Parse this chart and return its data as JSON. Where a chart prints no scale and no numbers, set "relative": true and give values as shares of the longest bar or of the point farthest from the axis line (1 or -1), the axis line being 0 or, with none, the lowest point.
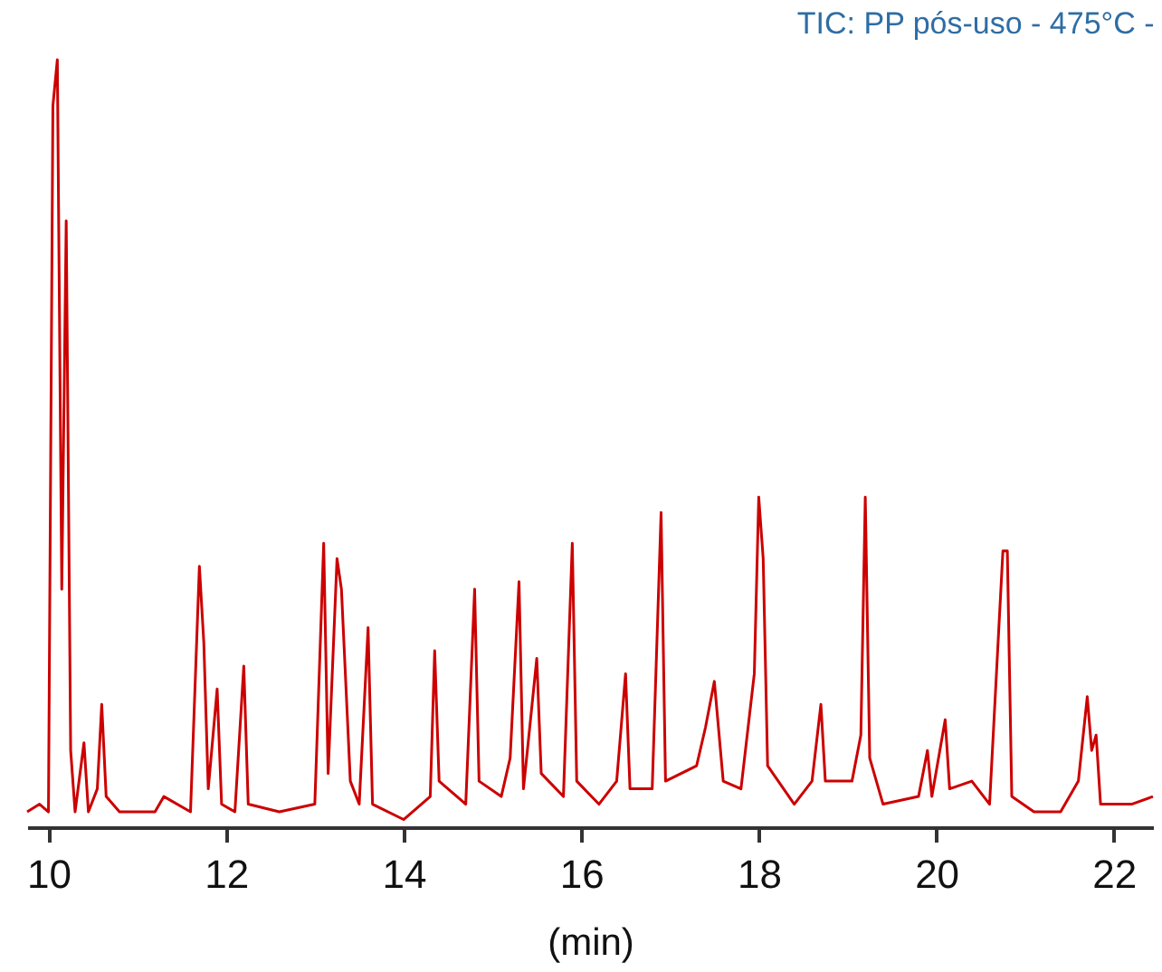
{
  "chart_data": {
    "type": "line",
    "title": "TIC: PP pós-uso - 475°C -",
    "xlabel": "(min)",
    "relative": true,
    "grid": false,
    "marker": "none",
    "line_style": "solid",
    "xlim": [
      9.76,
      22.44
    ],
    "xticks": [
      10,
      12,
      14,
      16,
      18,
      20,
      22
    ],
    "series": [
      {
        "color": "#cc0000",
        "x": [
          9.76,
          9.9,
          10.0,
          10.05,
          10.1,
          10.15,
          10.2,
          10.25,
          10.3,
          10.4,
          10.45,
          10.55,
          10.6,
          10.65,
          10.8,
          11.2,
          11.3,
          11.6,
          11.7,
          11.75,
          11.8,
          11.9,
          11.95,
          12.1,
          12.2,
          12.25,
          12.6,
          13.0,
          13.1,
          13.15,
          13.25,
          13.3,
          13.4,
          13.5,
          13.6,
          13.65,
          14.0,
          14.3,
          14.35,
          14.4,
          14.5,
          14.7,
          14.8,
          14.85,
          15.1,
          15.2,
          15.3,
          15.35,
          15.5,
          15.55,
          15.8,
          15.9,
          15.95,
          16.2,
          16.4,
          16.5,
          16.55,
          16.8,
          16.9,
          16.95,
          17.3,
          17.4,
          17.5,
          17.6,
          17.8,
          17.95,
          18.0,
          18.05,
          18.1,
          18.4,
          18.6,
          18.7,
          18.75,
          19.05,
          19.15,
          19.2,
          19.25,
          19.4,
          19.8,
          19.9,
          19.95,
          20.1,
          20.15,
          20.4,
          20.6,
          20.75,
          20.8,
          20.85,
          21.1,
          21.4,
          21.6,
          21.7,
          21.75,
          21.8,
          21.85,
          22.2,
          22.44
        ],
        "values": [
          0.02,
          0.03,
          0.02,
          0.94,
          1.0,
          0.31,
          0.79,
          0.1,
          0.02,
          0.11,
          0.02,
          0.05,
          0.16,
          0.04,
          0.02,
          0.02,
          0.04,
          0.02,
          0.34,
          0.24,
          0.05,
          0.18,
          0.03,
          0.02,
          0.21,
          0.03,
          0.02,
          0.03,
          0.37,
          0.07,
          0.35,
          0.31,
          0.06,
          0.03,
          0.26,
          0.03,
          0.01,
          0.04,
          0.23,
          0.06,
          0.05,
          0.03,
          0.31,
          0.06,
          0.04,
          0.09,
          0.32,
          0.05,
          0.22,
          0.07,
          0.04,
          0.37,
          0.06,
          0.03,
          0.06,
          0.2,
          0.05,
          0.05,
          0.41,
          0.06,
          0.08,
          0.13,
          0.19,
          0.06,
          0.05,
          0.2,
          0.43,
          0.35,
          0.08,
          0.03,
          0.06,
          0.16,
          0.06,
          0.06,
          0.12,
          0.43,
          0.09,
          0.03,
          0.04,
          0.1,
          0.04,
          0.14,
          0.05,
          0.06,
          0.03,
          0.36,
          0.36,
          0.04,
          0.02,
          0.02,
          0.06,
          0.17,
          0.1,
          0.12,
          0.03,
          0.03,
          0.04
        ]
      }
    ]
  }
}
